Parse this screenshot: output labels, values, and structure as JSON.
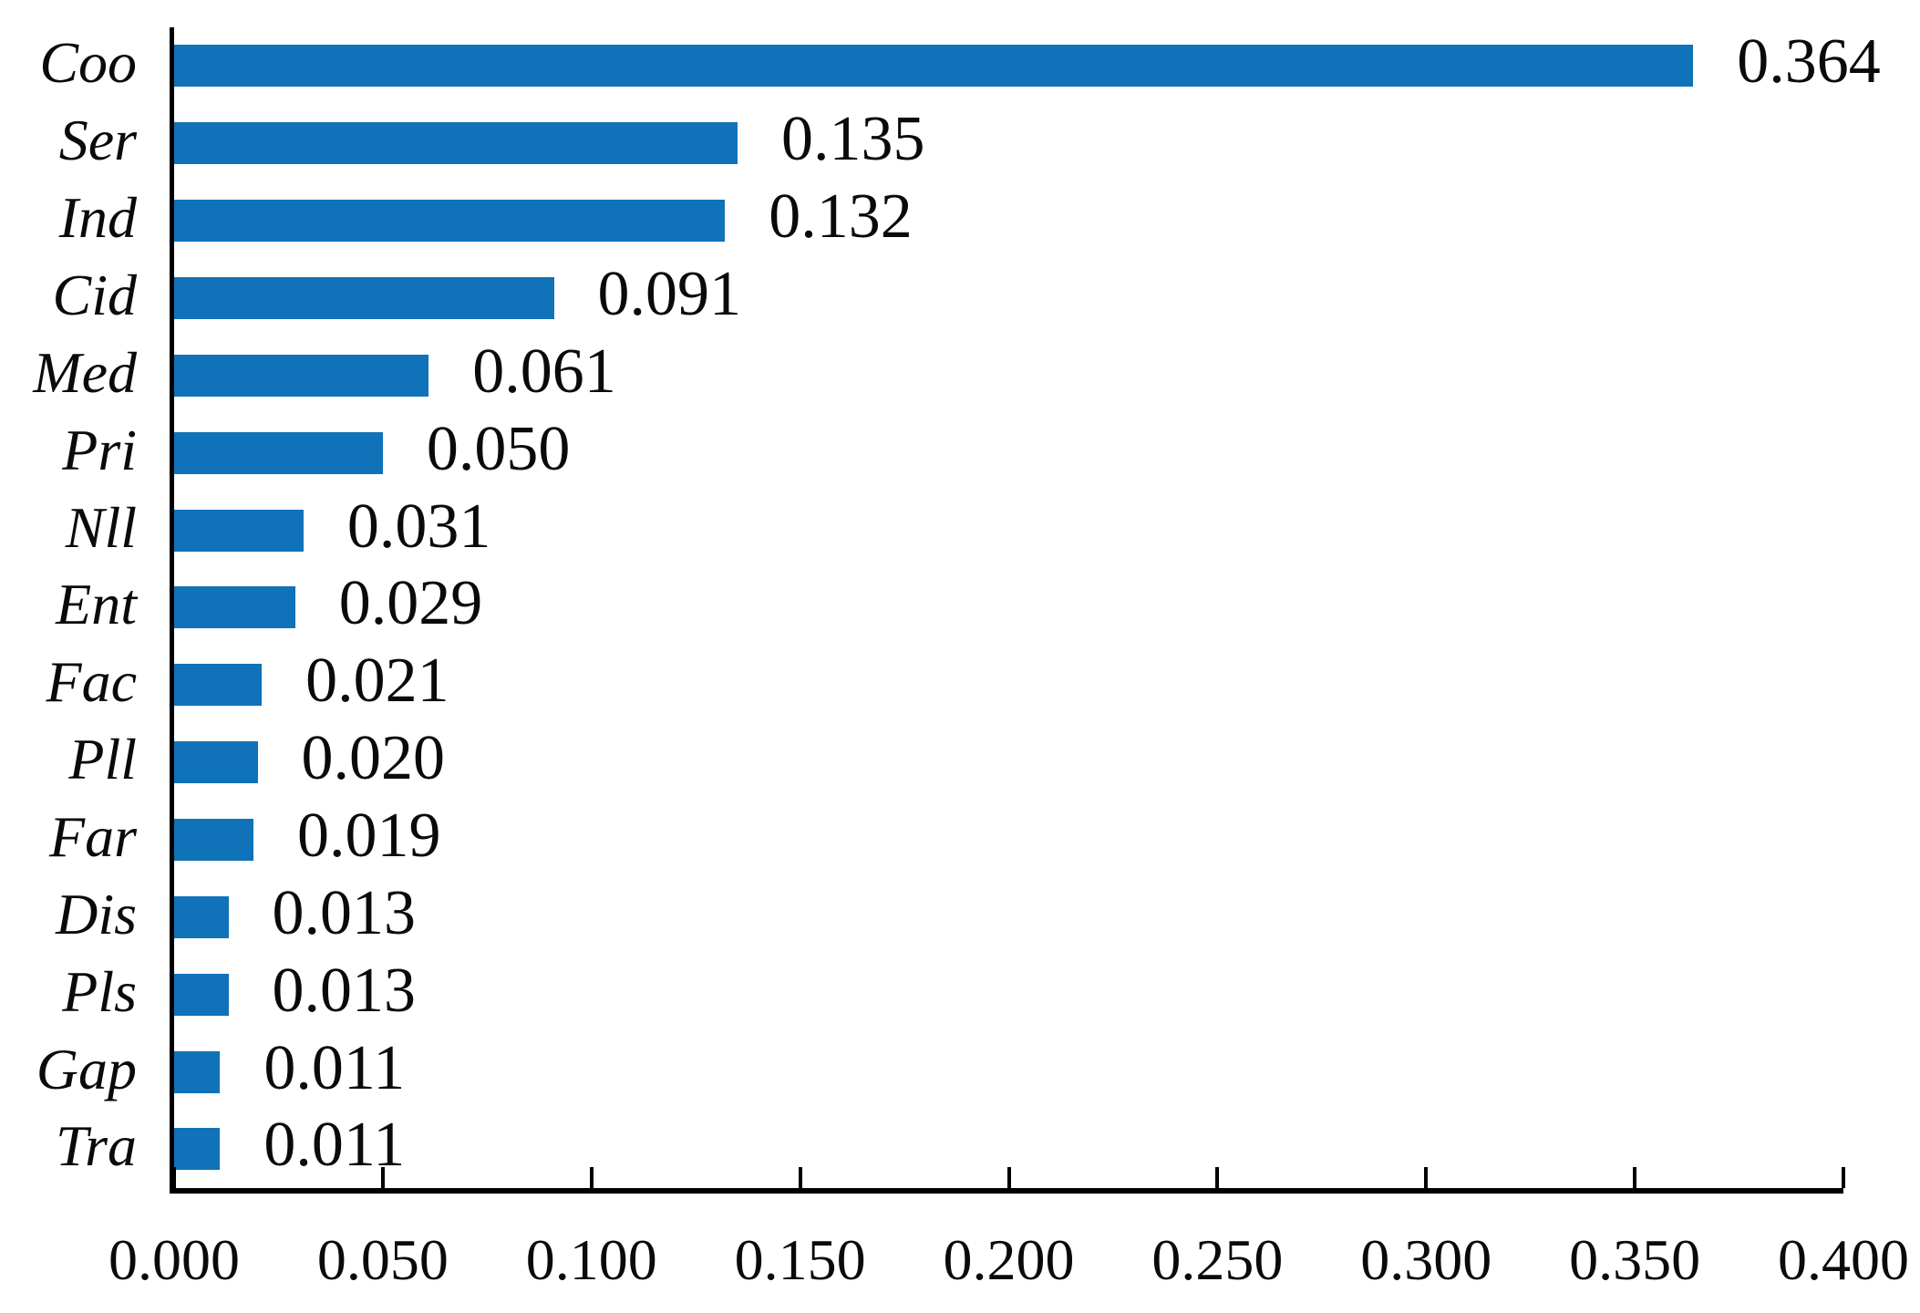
{
  "figure": {
    "background_color": "#ffffff",
    "axis_color": "#000000",
    "text_color": "#0a0a0a"
  },
  "chart_data": {
    "type": "bar",
    "orientation": "horizontal",
    "categories": [
      "Coo",
      "Ser",
      "Ind",
      "Cid",
      "Med",
      "Pri",
      "Nll",
      "Ent",
      "Fac",
      "Pll",
      "Far",
      "Dis",
      "Pls",
      "Gap",
      "Tra"
    ],
    "values": [
      0.364,
      0.135,
      0.132,
      0.091,
      0.061,
      0.05,
      0.031,
      0.029,
      0.021,
      0.02,
      0.019,
      0.013,
      0.013,
      0.011,
      0.011
    ],
    "value_labels": [
      "0.364",
      "0.135",
      "0.132",
      "0.091",
      "0.061",
      "0.050",
      "0.031",
      "0.029",
      "0.021",
      "0.020",
      "0.019",
      "0.013",
      "0.013",
      "0.011",
      "0.011"
    ],
    "bar_color": "#1072b8",
    "xlim": [
      0,
      0.4
    ],
    "x_ticks": [
      0.0,
      0.05,
      0.1,
      0.15,
      0.2,
      0.25,
      0.3,
      0.35,
      0.4
    ],
    "x_tick_labels": [
      "0.000",
      "0.050",
      "0.100",
      "0.150",
      "0.200",
      "0.250",
      "0.300",
      "0.350",
      "0.400"
    ],
    "grid": false,
    "legend": null,
    "category_label_style": "italic",
    "value_label_position": "outside-right"
  }
}
